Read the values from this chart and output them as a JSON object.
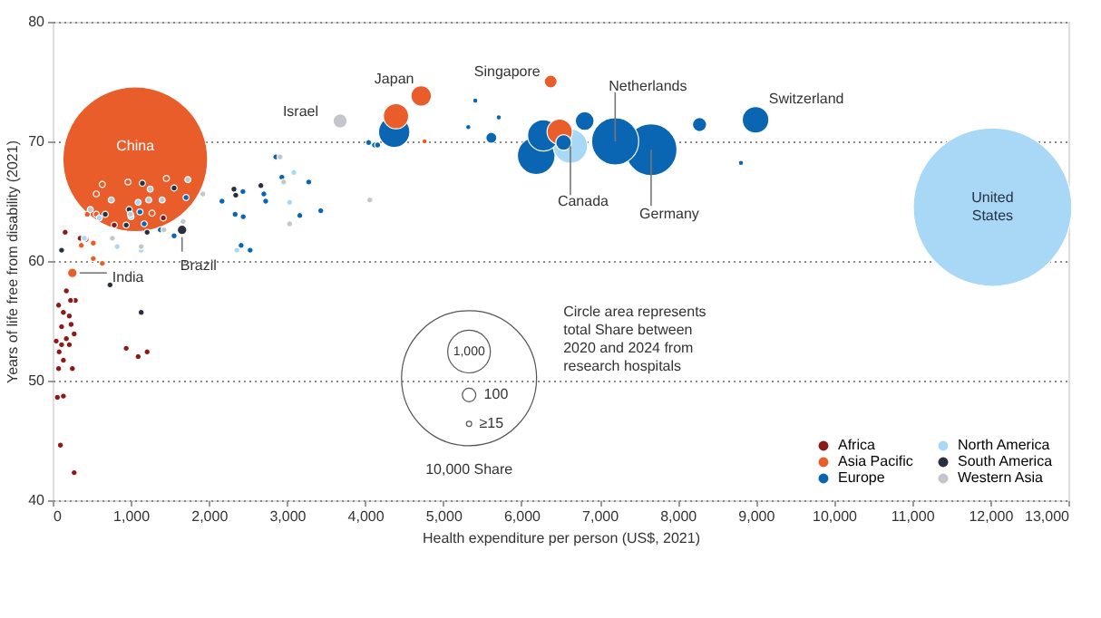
{
  "chart_data": {
    "type": "bubble",
    "xlabel": "Health expenditure per person (US$, 2021)",
    "ylabel": "Years of life free from disability (2021)",
    "xlim": [
      0,
      13000
    ],
    "xticks": [
      0,
      {
        "value": 1000,
        "label": "1,000"
      },
      {
        "value": 2000,
        "label": "2,000"
      },
      {
        "value": 3000,
        "label": "3,000"
      },
      {
        "value": 4000,
        "label": "4,000"
      },
      {
        "value": 5000,
        "label": "5,000"
      },
      {
        "value": 6000,
        "label": "6,000"
      },
      {
        "value": 7000,
        "label": "7,000"
      },
      {
        "value": 8000,
        "label": "8,000"
      },
      {
        "value": 9000,
        "label": "9,000"
      },
      {
        "value": 10000,
        "label": "10,000"
      },
      {
        "value": 11000,
        "label": "11,000"
      },
      {
        "value": 12000,
        "label": "12,000"
      },
      {
        "value": 13000,
        "label": "13,000"
      }
    ],
    "ylim": [
      40,
      80
    ],
    "yticks": [
      40,
      50,
      60,
      70,
      80
    ],
    "grid": "y",
    "legend": "bottom right",
    "size_legend": [
      {
        "value": 15,
        "label": "≥15"
      },
      100,
      {
        "value": 1000,
        "label": "1,000"
      },
      {
        "value": 10000,
        "label": "10,000 Share"
      }
    ],
    "series": [
      {
        "name": "Africa",
        "color": "#8b1a1a",
        "x": [
          161,
          77,
          138,
          214,
          291,
          230,
          176,
          237,
          115,
          46,
          115,
          214,
          176,
          84,
          276,
          138,
          77,
          253,
          61,
          138,
          100,
          276,
          942,
          1095,
          1210,
          789,
          1417,
          352
        ],
        "values": [
          62.4,
          56.3,
          55.7,
          55.4,
          56.7,
          56.7,
          57.5,
          54.7,
          54.5,
          53.3,
          53.0,
          53.0,
          53.5,
          52.4,
          53.9,
          51.7,
          51.0,
          51.0,
          48.6,
          48.7,
          44.6,
          42.3,
          52.7,
          52.0,
          52.4,
          63.0,
          63.6,
          61.9
        ],
        "sizes": [
          20,
          20,
          20,
          20,
          20,
          20,
          20,
          20,
          20,
          20,
          20,
          20,
          20,
          20,
          20,
          20,
          20,
          20,
          20,
          20,
          20,
          20,
          20,
          20,
          20,
          20,
          20,
          20
        ]
      },
      {
        "name": "Asia Pacific",
        "color": "#e85d2a",
        "x": [
          1058,
          253,
          4395,
          4717,
          6375,
          6490,
          4760,
          368,
          429,
          521,
          444,
          521,
          636,
          559,
          559,
          636,
          965,
          1456,
          1272
        ],
        "values": [
          68.5,
          59.0,
          72.1,
          73.8,
          75.0,
          70.8,
          70.0,
          61.3,
          61.8,
          61.5,
          63.9,
          60.2,
          59.8,
          63.9,
          65.6,
          66.4,
          66.6,
          66.9,
          64.0
        ],
        "sizes": [
          11500,
          50,
          350,
          230,
          90,
          350,
          15,
          20,
          20,
          20,
          20,
          20,
          20,
          20,
          20,
          20,
          20,
          20,
          20
        ]
      },
      {
        "name": "Europe",
        "color": "#0a66b2",
        "x": [
          4372,
          4120,
          7200,
          7660,
          6540,
          6190,
          6280,
          6810,
          8280,
          8997,
          8810,
          5615,
          5410,
          5710,
          5320,
          1172,
          1118,
          1555,
          1379,
          1708,
          2168,
          2436,
          2336,
          2440,
          2413,
          2528,
          2704,
          2727,
          2857,
          2934,
          3278,
          3164,
          3432,
          4045,
          4160
        ],
        "values": [
          70.8,
          69.7,
          70.0,
          69.3,
          69.9,
          68.8,
          70.5,
          71.7,
          71.4,
          71.8,
          68.2,
          70.3,
          73.4,
          72.0,
          71.2,
          63.1,
          64.1,
          62.1,
          62.6,
          65.3,
          65.0,
          65.8,
          63.9,
          63.7,
          61.3,
          60.9,
          65.6,
          65.0,
          68.7,
          67.0,
          66.6,
          63.8,
          64.2,
          69.9,
          69.7
        ],
        "sizes": [
          540,
          20,
          1220,
          1470,
          135,
          780,
          540,
          195,
          110,
          390,
          15,
          66,
          15,
          15,
          15,
          20,
          20,
          20,
          20,
          20,
          20,
          20,
          20,
          20,
          20,
          20,
          20,
          20,
          20,
          20,
          20,
          20,
          20,
          20,
          20
        ]
      },
      {
        "name": "North America",
        "color": "#a8d8f5",
        "x": [
          12030,
          6627,
          751,
          827,
          1134,
          1004,
          598,
          3087,
          3034,
          2359,
          406,
          1095
        ],
        "values": [
          64.5,
          69.6,
          61.9,
          61.2,
          60.9,
          63.7,
          63.6,
          67.4,
          64.9,
          60.9,
          61.9,
          64.9
        ],
        "sizes": [
          13800,
          650,
          20,
          20,
          20,
          20,
          20,
          20,
          20,
          20,
          20,
          20
        ]
      },
      {
        "name": "South America",
        "color": "#283040",
        "x": [
          1657,
          115,
          735,
          1134,
          674,
          980,
          942,
          1210,
          1555,
          2321,
          2344,
          2666,
          1149
        ],
        "values": [
          62.6,
          60.9,
          58.0,
          55.7,
          63.9,
          64.3,
          63.0,
          62.4,
          66.1,
          66.0,
          65.5,
          66.3,
          66.5
        ],
        "sizes": [
          50,
          20,
          20,
          20,
          20,
          20,
          20,
          20,
          20,
          20,
          20,
          20,
          20
        ]
      },
      {
        "name": "Western Asia",
        "color": "#c3c6ca",
        "x": [
          3680,
          751,
          1249,
          1402,
          1230,
          1731,
          1923,
          1670,
          1425,
          1134,
          766,
          2957,
          3034,
          2911,
          4060,
          483,
          996
        ],
        "values": [
          71.7,
          65.1,
          66.0,
          65.1,
          65.1,
          66.8,
          65.6,
          63.3,
          62.6,
          61.2,
          61.9,
          66.6,
          63.1,
          68.7,
          65.1,
          64.3,
          63.9
        ],
        "sizes": [
          110,
          20,
          20,
          20,
          20,
          20,
          20,
          20,
          20,
          20,
          20,
          20,
          20,
          20,
          20,
          20,
          20
        ]
      }
    ],
    "annotations": [
      {
        "text": "China",
        "x": 1058,
        "y": 68.5
      },
      {
        "text": "United States",
        "x": 12030,
        "y": 64.5
      },
      {
        "text": "India",
        "x": 253,
        "y": 59.0
      },
      {
        "text": "Brazil",
        "x": 1657,
        "y": 62.6
      },
      {
        "text": "Israel",
        "x": 3680,
        "y": 71.7
      },
      {
        "text": "Japan",
        "x": 4395,
        "y": 72.1
      },
      {
        "text": "Singapore",
        "x": 6375,
        "y": 75.0
      },
      {
        "text": "Netherlands",
        "x": 7200,
        "y": 70.0
      },
      {
        "text": "Germany",
        "x": 7660,
        "y": 69.3
      },
      {
        "text": "Canada",
        "x": 6627,
        "y": 69.6
      },
      {
        "text": "Switzerland",
        "x": 8997,
        "y": 71.8
      },
      "Circle area represents total Share between 2020 and 2024 from research hospitals"
    ]
  }
}
